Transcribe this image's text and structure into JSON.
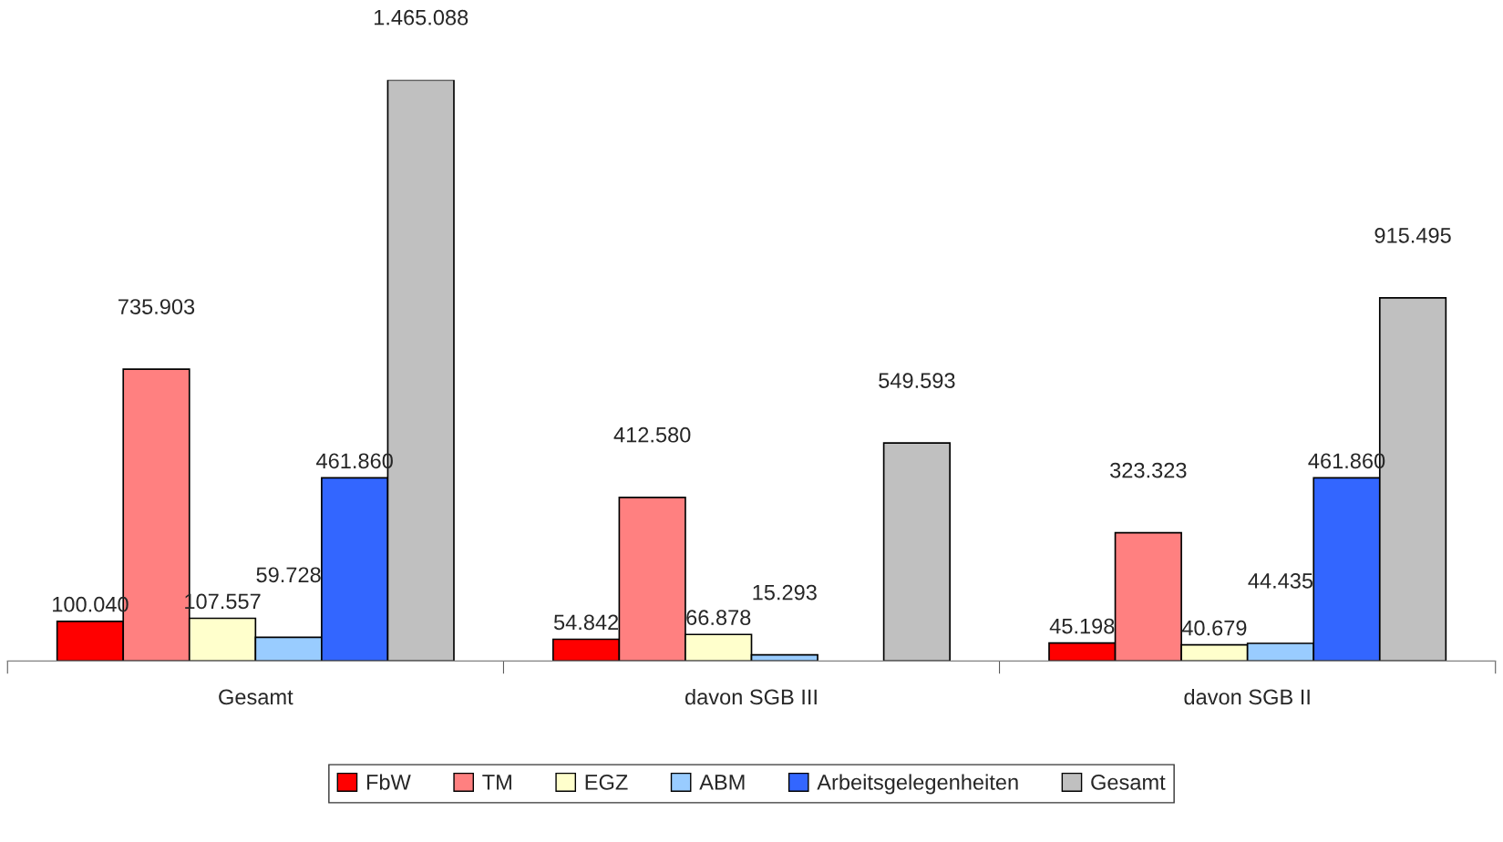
{
  "chart_data": {
    "type": "bar",
    "categories": [
      "Gesamt",
      "davon SGB III",
      "davon SGB II"
    ],
    "series": [
      {
        "name": "FbW",
        "color": "#ff0000",
        "values": [
          100040,
          54842,
          45198
        ],
        "value_labels": [
          "100.040",
          "54.842",
          "45.198"
        ]
      },
      {
        "name": "TM",
        "color": "#ff8080",
        "values": [
          735903,
          412580,
          323323
        ],
        "value_labels": [
          "735.903",
          "412.580",
          "323.323"
        ]
      },
      {
        "name": "EGZ",
        "color": "#ffffcc",
        "values": [
          107557,
          66878,
          40679
        ],
        "value_labels": [
          "107.557",
          "66.878",
          "40.679"
        ]
      },
      {
        "name": "ABM",
        "color": "#99ccff",
        "values": [
          59728,
          15293,
          44435
        ],
        "value_labels": [
          "59.728",
          "15.293",
          "44.435"
        ]
      },
      {
        "name": "Arbeitsgelegenheiten",
        "color": "#3366ff",
        "values": [
          461860,
          null,
          461860
        ],
        "value_labels": [
          "461.860",
          null,
          "461.860"
        ]
      },
      {
        "name": "Gesamt",
        "color": "#c0c0c0",
        "values": [
          1465088,
          549593,
          915495
        ],
        "value_labels": [
          "1.465.088",
          "549.593",
          "915.495"
        ]
      }
    ],
    "legend": "bottom",
    "grid": false
  }
}
